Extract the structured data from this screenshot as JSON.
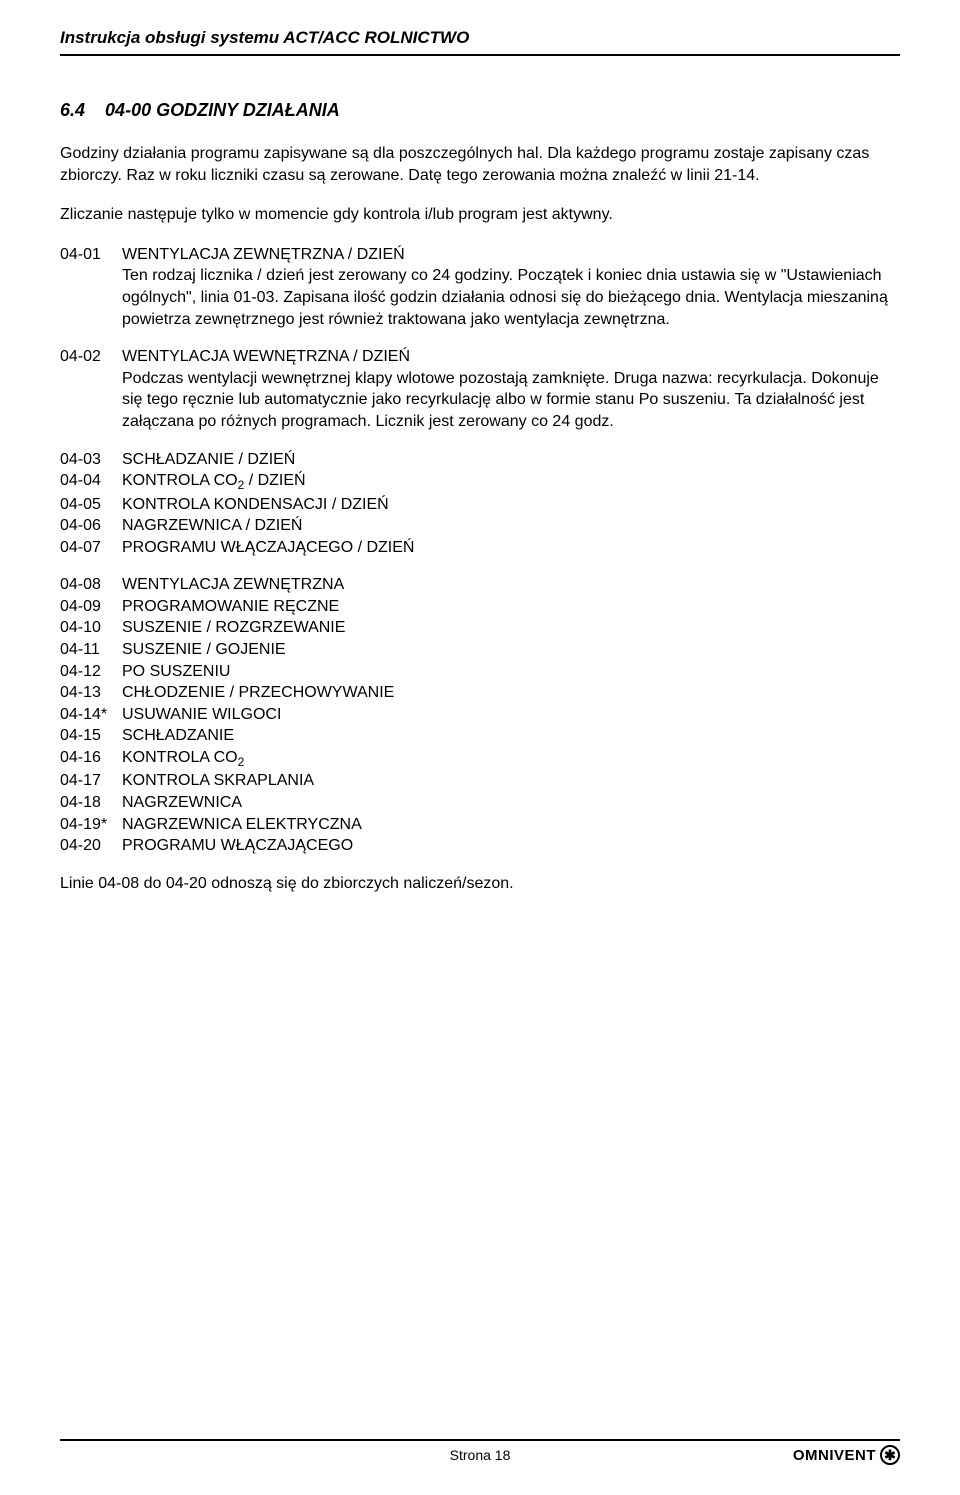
{
  "header": {
    "title": "Instrukcja obsługi systemu ACT/ACC ROLNICTWO"
  },
  "section": {
    "number": "6.4",
    "title": "04-00 GODZINY DZIAŁANIA"
  },
  "intro": {
    "p1": "Godziny działania programu zapisywane są dla poszczególnych hal. Dla każdego programu zostaje zapisany czas zbiorczy. Raz w roku liczniki czasu są zerowane. Datę tego zerowania można znaleźć w linii 21-14.",
    "p2": "Zliczanie następuje tylko w momencie gdy kontrola i/lub program jest aktywny."
  },
  "entries": {
    "e1": {
      "code": "04-01",
      "title": "WENTYLACJA ZEWNĘTRZNA / DZIEŃ",
      "body": "Ten rodzaj licznika / dzień jest zerowany co 24 godziny. Początek i koniec dnia ustawia się w \"Ustawieniach ogólnych\", linia 01-03. Zapisana ilość godzin działania odnosi się do bieżącego dnia. Wentylacja mieszaniną powietrza zewnętrznego jest również traktowana jako wentylacja zewnętrzna."
    },
    "e2": {
      "code": "04-02",
      "title": "WENTYLACJA WEWNĘTRZNA / DZIEŃ",
      "body": "Podczas wentylacji wewnętrznej klapy wlotowe pozostają zamknięte. Druga nazwa: recyrkulacja. Dokonuje się tego ręcznie lub automatycznie jako recyrkulację albo w formie stanu Po suszeniu. Ta działalność jest załączana po różnych programach. Licznik jest zerowany co 24 godz."
    }
  },
  "list1": [
    {
      "code": "04-03",
      "label": "SCHŁADZANIE / DZIEŃ"
    },
    {
      "code": "04-04",
      "label_html": "KONTROLA CO<sub>2</sub> / DZIEŃ"
    },
    {
      "code": "04-05",
      "label": "KONTROLA KONDENSACJI / DZIEŃ"
    },
    {
      "code": "04-06",
      "label": "NAGRZEWNICA / DZIEŃ"
    },
    {
      "code": "04-07",
      "label": "PROGRAMU WŁĄCZAJĄCEGO / DZIEŃ"
    }
  ],
  "list2": [
    {
      "code": "04-08",
      "label": "WENTYLACJA ZEWNĘTRZNA"
    },
    {
      "code": "04-09",
      "label": "PROGRAMOWANIE RĘCZNE"
    },
    {
      "code": "04-10",
      "label": "SUSZENIE / ROZGRZEWANIE"
    },
    {
      "code": "04-11",
      "label": "SUSZENIE / GOJENIE"
    },
    {
      "code": "04-12",
      "label": "PO SUSZENIU"
    },
    {
      "code": "04-13",
      "label": "CHŁODZENIE / PRZECHOWYWANIE"
    },
    {
      "code": "04-14*",
      "label": "USUWANIE WILGOCI"
    },
    {
      "code": "04-15",
      "label": "SCHŁADZANIE"
    },
    {
      "code": "04-16",
      "label_html": "KONTROLA CO<sub>2</sub>"
    },
    {
      "code": "04-17",
      "label": "KONTROLA SKRAPLANIA"
    },
    {
      "code": "04-18",
      "label": "NAGRZEWNICA"
    },
    {
      "code": "04-19*",
      "label": "NAGRZEWNICA ELEKTRYCZNA"
    },
    {
      "code": "04-20",
      "label": "PROGRAMU WŁĄCZAJĄCEGO"
    }
  ],
  "closing": "Linie 04-08 do 04-20 odnoszą się do zbiorczych naliczeń/sezon.",
  "footer": {
    "page_label": "Strona",
    "page_num": "18",
    "logo_text": "OMNIVENT",
    "logo_symbol": "✱"
  }
}
